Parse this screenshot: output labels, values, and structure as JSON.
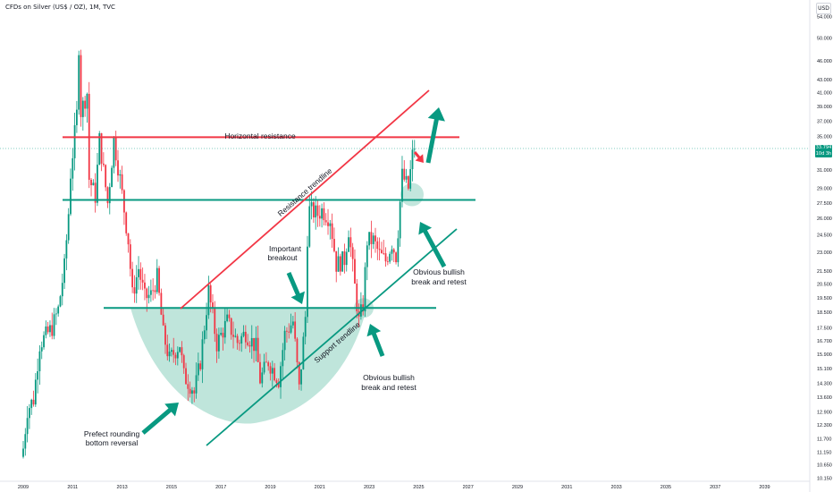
{
  "header": {
    "symbol_line": "CFDs on Silver (US$ / OZ), 1M, TVC"
  },
  "currency_button": "USD",
  "price_tag": {
    "last": "33.794",
    "countdown": "10d 3h"
  },
  "colors": {
    "up": "#089981",
    "down": "#f23645",
    "resistance": "#f23645",
    "support_line": "#089981",
    "bowl_fill": "#a9dccf",
    "arrow_green": "#089981",
    "arrow_red": "#f23645"
  },
  "chart_data": {
    "type": "candlestick",
    "title": "",
    "x_tick_labels": [
      "2009",
      "2011",
      "2013",
      "2015",
      "2017",
      "2019",
      "2021",
      "2023",
      "2025",
      "2027",
      "2029",
      "2031",
      "2033",
      "2035",
      "2037",
      "2039"
    ],
    "y_tick_labels": [
      "54.000",
      "50.000",
      "46.000",
      "43.000",
      "41.000",
      "39.000",
      "37.000",
      "35.000",
      "31.000",
      "29.000",
      "27.500",
      "26.000",
      "24.500",
      "23.000",
      "21.500",
      "20.500",
      "19.500",
      "18.500",
      "17.500",
      "16.700",
      "15.900",
      "15.100",
      "14.300",
      "13.600",
      "12.900",
      "12.300",
      "11.700",
      "11.150",
      "10.650",
      "10.150"
    ],
    "y_scale": "log",
    "y_range": [
      10.0,
      57.0
    ],
    "last_price": 33.794,
    "monthly_close_path": [
      {
        "date": "2009-01",
        "price": 11.3
      },
      {
        "date": "2009-03",
        "price": 13.0
      },
      {
        "date": "2009-06",
        "price": 13.5
      },
      {
        "date": "2009-09",
        "price": 16.5
      },
      {
        "date": "2009-12",
        "price": 17.0
      },
      {
        "date": "2010-03",
        "price": 17.5
      },
      {
        "date": "2010-06",
        "price": 18.7
      },
      {
        "date": "2010-09",
        "price": 21.8
      },
      {
        "date": "2010-11",
        "price": 26.5
      },
      {
        "date": "2010-12",
        "price": 30.6
      },
      {
        "date": "2011-03",
        "price": 37.9
      },
      {
        "date": "2011-04",
        "price": 48.6
      },
      {
        "date": "2011-05",
        "price": 38.3
      },
      {
        "date": "2011-08",
        "price": 41.0
      },
      {
        "date": "2011-09",
        "price": 30.0
      },
      {
        "date": "2011-12",
        "price": 28.2
      },
      {
        "date": "2012-02",
        "price": 34.6
      },
      {
        "date": "2012-06",
        "price": 27.5
      },
      {
        "date": "2012-09",
        "price": 34.6
      },
      {
        "date": "2012-12",
        "price": 30.0
      },
      {
        "date": "2013-04",
        "price": 24.0
      },
      {
        "date": "2013-06",
        "price": 19.7
      },
      {
        "date": "2013-09",
        "price": 21.7
      },
      {
        "date": "2013-12",
        "price": 19.5
      },
      {
        "date": "2014-03",
        "price": 19.7
      },
      {
        "date": "2014-06",
        "price": 21.0
      },
      {
        "date": "2014-09",
        "price": 17.1
      },
      {
        "date": "2014-12",
        "price": 15.6
      },
      {
        "date": "2015-05",
        "price": 16.5
      },
      {
        "date": "2015-07",
        "price": 14.7
      },
      {
        "date": "2015-11",
        "price": 14.1
      },
      {
        "date": "2015-12",
        "price": 13.8
      },
      {
        "date": "2016-03",
        "price": 15.5
      },
      {
        "date": "2016-07",
        "price": 20.0
      },
      {
        "date": "2016-11",
        "price": 16.5
      },
      {
        "date": "2017-04",
        "price": 17.9
      },
      {
        "date": "2017-09",
        "price": 16.6
      },
      {
        "date": "2018-01",
        "price": 17.2
      },
      {
        "date": "2018-06",
        "price": 16.3
      },
      {
        "date": "2018-08",
        "price": 14.5
      },
      {
        "date": "2018-12",
        "price": 15.5
      },
      {
        "date": "2019-05",
        "price": 14.5
      },
      {
        "date": "2019-08",
        "price": 17.1
      },
      {
        "date": "2019-12",
        "price": 17.9
      },
      {
        "date": "2020-03",
        "price": 14.0
      },
      {
        "date": "2020-06",
        "price": 18.2
      },
      {
        "date": "2020-07",
        "price": 24.3
      },
      {
        "date": "2020-08",
        "price": 26.8
      },
      {
        "date": "2020-12",
        "price": 26.4
      },
      {
        "date": "2021-02",
        "price": 26.8
      },
      {
        "date": "2021-06",
        "price": 26.0
      },
      {
        "date": "2021-09",
        "price": 22.0
      },
      {
        "date": "2022-01",
        "price": 22.4
      },
      {
        "date": "2022-03",
        "price": 25.0
      },
      {
        "date": "2022-06",
        "price": 20.3
      },
      {
        "date": "2022-08",
        "price": 17.9
      },
      {
        "date": "2022-10",
        "price": 19.0
      },
      {
        "date": "2022-12",
        "price": 24.0
      },
      {
        "date": "2023-03",
        "price": 24.0
      },
      {
        "date": "2023-06",
        "price": 22.8
      },
      {
        "date": "2023-09",
        "price": 22.3
      },
      {
        "date": "2023-12",
        "price": 23.8
      },
      {
        "date": "2024-02",
        "price": 22.7
      },
      {
        "date": "2024-03",
        "price": 24.9
      },
      {
        "date": "2024-04",
        "price": 27.6
      },
      {
        "date": "2024-05",
        "price": 30.4
      },
      {
        "date": "2024-08",
        "price": 29.0
      },
      {
        "date": "2024-10",
        "price": 32.7
      },
      {
        "date": "2024-11",
        "price": 33.8
      }
    ],
    "annotations": [
      {
        "label": "Horizontal resistance"
      },
      {
        "label": "Resistance trendline"
      },
      {
        "label": "Support trendline"
      },
      {
        "label": "Important breakout"
      },
      {
        "label": "Obvious bullish break and retest",
        "at": "right"
      },
      {
        "label": "Obvious bullish break and retest",
        "at": "lower"
      },
      {
        "label": "Prefect rounding bottom reversal"
      }
    ],
    "levels": {
      "horizontal_resistance": 34.9,
      "upper_support_level": 27.8,
      "lower_support_level": 18.8
    },
    "grid": false,
    "legend": "none"
  },
  "labels": {
    "horizontal_resistance": "Horizontal resistance",
    "resistance_trendline": "Resistance trendline",
    "support_trendline": "Support trendline",
    "important_breakout_1": "Important",
    "important_breakout_2": "breakout",
    "bullish_right_1": "Obvious bullish",
    "bullish_right_2": "break and retest",
    "bullish_lower_1": "Obvious bullish",
    "bullish_lower_2": "break and retest",
    "rounding_1": "Prefect rounding",
    "rounding_2": "bottom reversal"
  }
}
